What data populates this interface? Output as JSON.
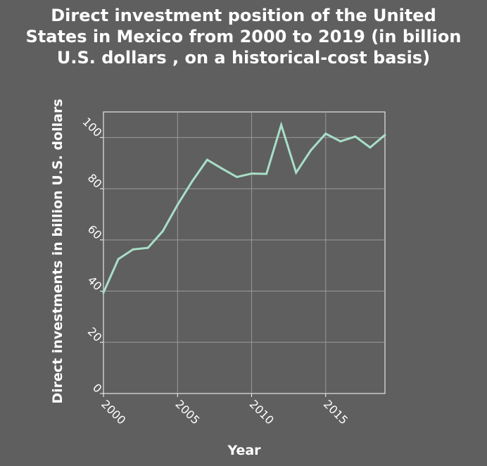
{
  "chart_data": {
    "type": "line",
    "title_lines": [
      "Direct investment position of the United",
      "States in Mexico from 2000 to 2019 (in billion",
      "U.S. dollars , on a historical-cost basis)"
    ],
    "xlabel": "Year",
    "ylabel": "Direct investments in billion U.S. dollars",
    "xlim": [
      2000,
      2019
    ],
    "ylim": [
      0,
      110
    ],
    "xticks": [
      2000,
      2005,
      2010,
      2015
    ],
    "yticks": [
      0,
      20,
      40,
      60,
      80,
      100
    ],
    "grid": true,
    "line_color": "#a8dfc8",
    "series": [
      {
        "x": [
          2000,
          2001,
          2002,
          2003,
          2004,
          2005,
          2006,
          2007,
          2008,
          2009,
          2010,
          2011,
          2012,
          2013,
          2014,
          2015,
          2016,
          2017,
          2018,
          2019
        ],
        "values": [
          39.4,
          52.5,
          56.3,
          56.9,
          63.4,
          73.7,
          83.0,
          91.3,
          87.9,
          84.6,
          85.9,
          85.8,
          104.9,
          86.3,
          95.0,
          101.5,
          98.5,
          100.4,
          96.1,
          101.0
        ]
      }
    ]
  }
}
